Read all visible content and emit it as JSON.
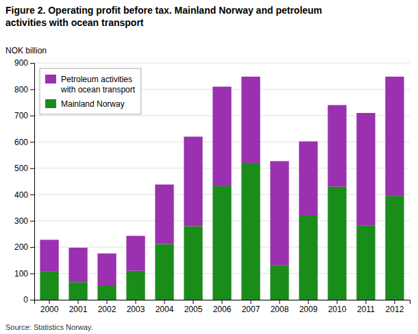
{
  "chart_data": {
    "type": "bar",
    "stacked": true,
    "title": "Figure 2. Operating profit before tax. Mainland Norway and petroleum\nactivities with ocean transport",
    "ylabel": "NOK billion",
    "annotations": [
      "Source: Statistics Norway."
    ],
    "categories": [
      "2000",
      "2001",
      "2002",
      "2003",
      "2004",
      "2005",
      "2006",
      "2007",
      "2008",
      "2009",
      "2010",
      "2011",
      "2012"
    ],
    "series": [
      {
        "name": "Mainland Norway",
        "color": "#1a8c1a",
        "values": [
          107,
          67,
          52,
          110,
          212,
          280,
          432,
          520,
          132,
          320,
          430,
          283,
          395
        ]
      },
      {
        "name": "Petroleum activities\nwith ocean transport",
        "color": "#9b30b0",
        "values": [
          121,
          131,
          124,
          133,
          226,
          340,
          378,
          328,
          395,
          282,
          310,
          427,
          453
        ]
      }
    ],
    "ylim": [
      0,
      900
    ],
    "yticks": [
      0,
      100,
      200,
      300,
      400,
      500,
      600,
      700,
      800,
      900
    ],
    "grid": true,
    "legend": "upper left"
  }
}
